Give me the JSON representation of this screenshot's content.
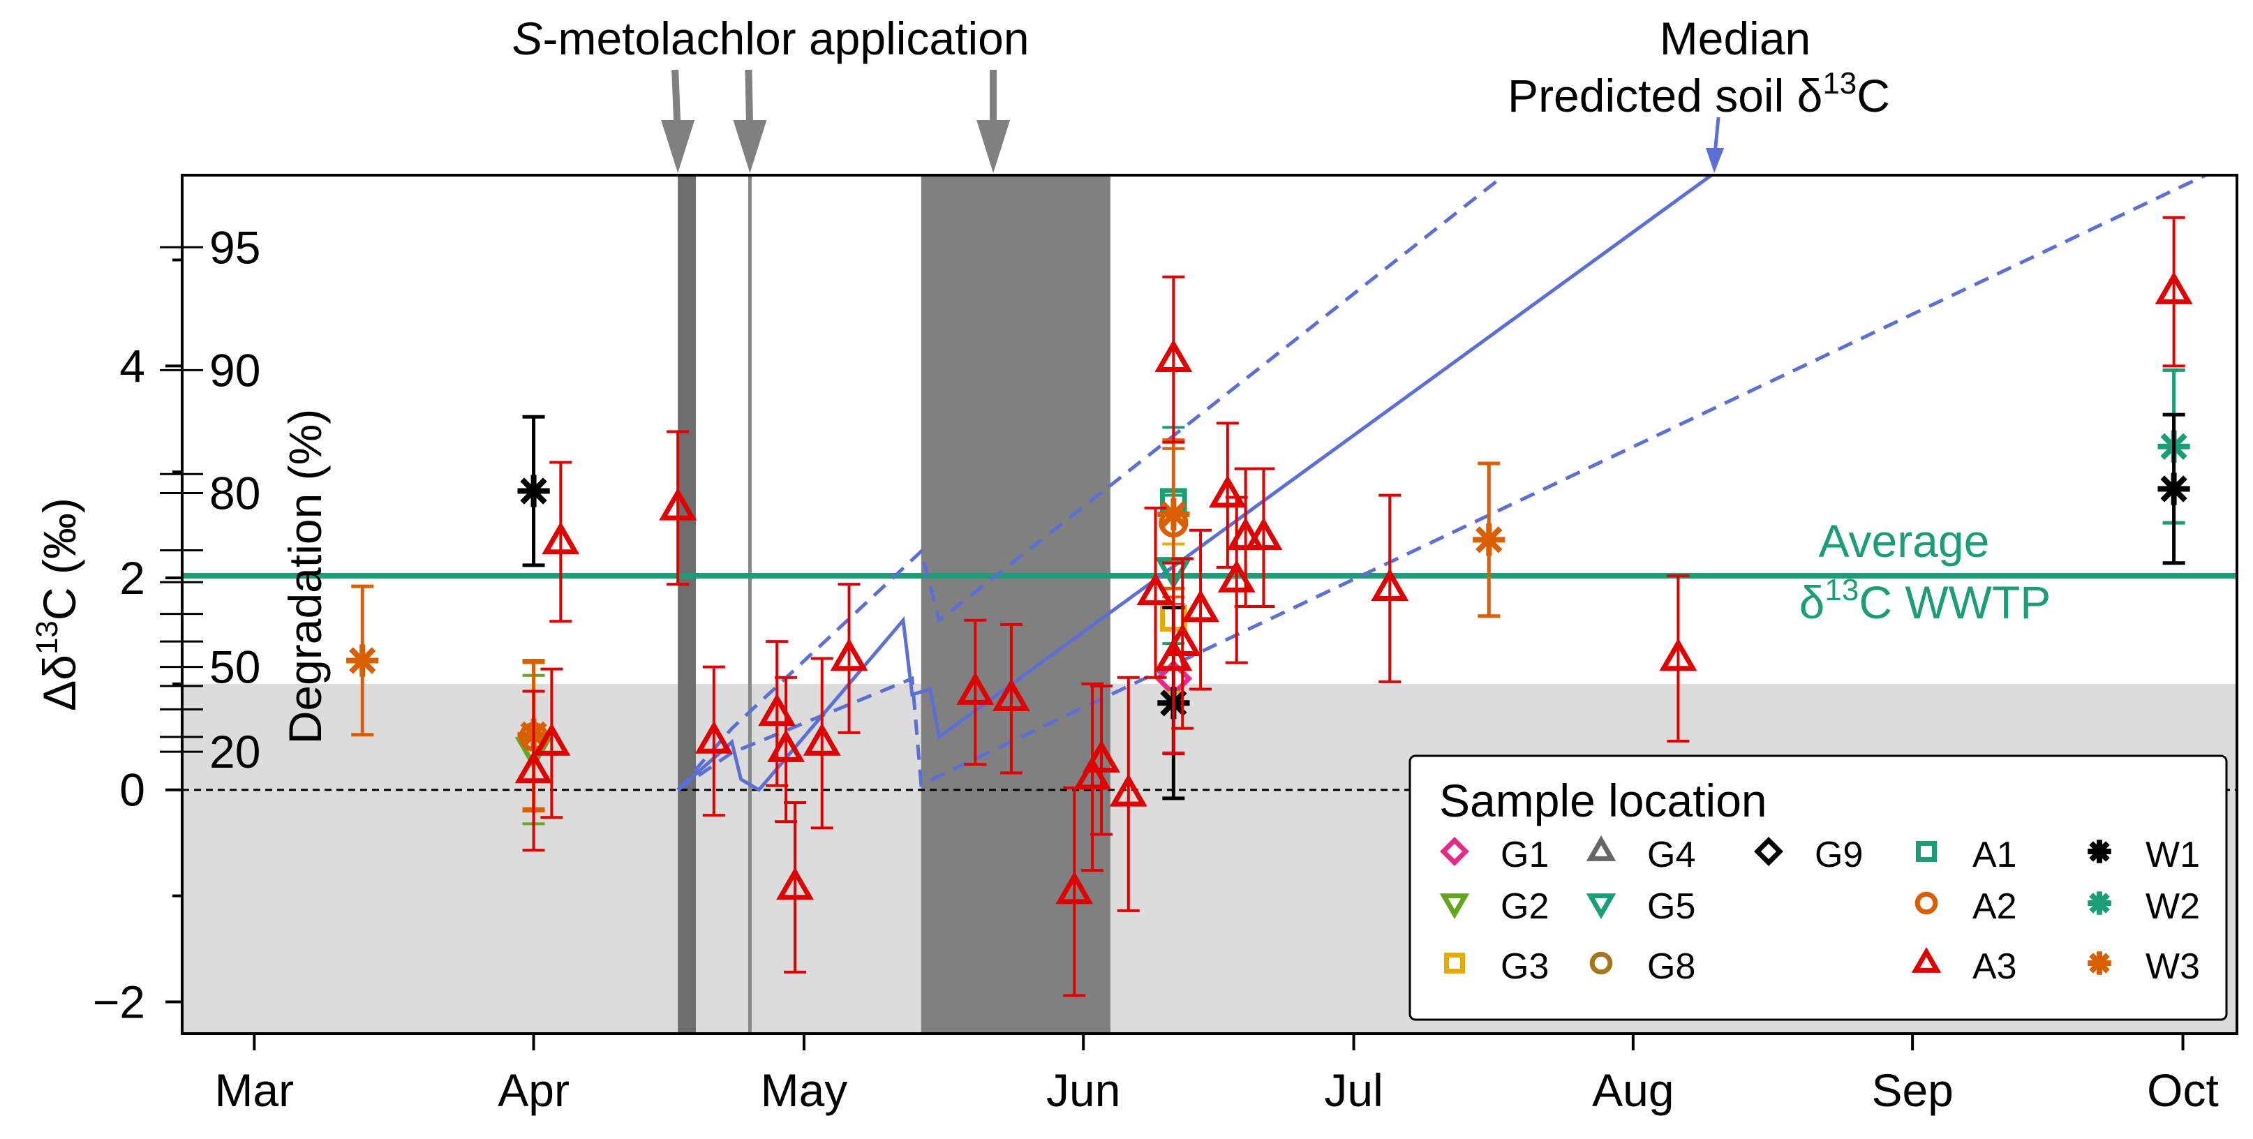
{
  "chart_data": {
    "type": "scatter",
    "x_axis": {
      "ticks": [
        "Mar",
        "Apr",
        "May",
        "Jun",
        "Jul",
        "Aug",
        "Sep",
        "Oct"
      ],
      "range": [
        "2017-02-21",
        "2017-10-07"
      ],
      "scale": "date"
    },
    "y_axis": {
      "label_main": "Δδ",
      "label_sup": "13",
      "label_tail": "C (‰)",
      "ticks": [
        -2,
        0,
        2,
        4
      ],
      "tick_labels": [
        "−2",
        "0",
        "2",
        "4"
      ],
      "range": [
        -2.3,
        5.8
      ]
    },
    "degradation_axis": {
      "label": "Degradation (%)",
      "labeled_ticks": [
        {
          "label": "20",
          "y": 0.36
        },
        {
          "label": "50",
          "y": 1.16
        },
        {
          "label": "80",
          "y": 2.8
        },
        {
          "label": "90",
          "y": 3.96
        },
        {
          "label": "95",
          "y": 5.12
        }
      ],
      "minor_tick_y": [
        0.5,
        0.76,
        0.98,
        1.4,
        1.66,
        1.96,
        2.26,
        2.98
      ]
    },
    "degradation_threshold_y": 1.0,
    "zero_line_y": 0,
    "average_wwtp": {
      "y": 2.02,
      "label_line1": "Average",
      "label_line2_pre": "δ",
      "label_line2_sup": "13",
      "label_line2_post": "C WWTP"
    },
    "application": {
      "label_italic": "S",
      "label_rest": "-metolachlor application",
      "bands": [
        {
          "start": "2017-04-17",
          "end": "2017-04-18"
        },
        {
          "start": "2017-04-25",
          "end": "2017-04-25"
        },
        {
          "start": "2017-05-14",
          "end": "2017-06-03"
        }
      ],
      "arrows_at": [
        "2017-04-17",
        "2017-04-25",
        "2017-05-22"
      ]
    },
    "prediction": {
      "label_line1": "Median",
      "label_line2_pre": "Predicted soil δ",
      "label_line2_sup": "13",
      "label_line2_post": "C",
      "arrow_at": "2017-08-10",
      "median": [
        {
          "x": "2017-04-17",
          "y": 0
        },
        {
          "x": "2017-04-23",
          "y": 0.45
        },
        {
          "x": "2017-04-24",
          "y": 0.1
        },
        {
          "x": "2017-04-26",
          "y": 0
        },
        {
          "x": "2017-05-12",
          "y": 1.6
        },
        {
          "x": "2017-05-13",
          "y": 0.9
        },
        {
          "x": "2017-05-15",
          "y": 0.95
        },
        {
          "x": "2017-05-16",
          "y": 0.5
        },
        {
          "x": "2017-08-10",
          "y": 5.82
        }
      ],
      "upper": [
        {
          "x": "2017-04-17",
          "y": 0
        },
        {
          "x": "2017-04-23",
          "y": 0.58
        },
        {
          "x": "2017-05-14",
          "y": 2.25
        },
        {
          "x": "2017-05-16",
          "y": 1.6
        },
        {
          "x": "2017-07-18",
          "y": 5.82
        }
      ],
      "lower": [
        {
          "x": "2017-04-17",
          "y": 0
        },
        {
          "x": "2017-04-23",
          "y": 0.35
        },
        {
          "x": "2017-05-13",
          "y": 1.05
        },
        {
          "x": "2017-05-14",
          "y": 0.05
        },
        {
          "x": "2017-10-04",
          "y": 5.82
        }
      ]
    },
    "legend": {
      "title": "Sample location",
      "position": "bottom-right",
      "entries": [
        {
          "key": "G1",
          "marker": "diamond",
          "color": "#e7298a"
        },
        {
          "key": "G2",
          "marker": "triangle-down",
          "color": "#66a61e"
        },
        {
          "key": "G3",
          "marker": "square",
          "color": "#e6ab02"
        },
        {
          "key": "G4",
          "marker": "triangle-up",
          "color": "#666666"
        },
        {
          "key": "G5",
          "marker": "triangle-down",
          "color": "#1b9e77"
        },
        {
          "key": "G8",
          "marker": "circle",
          "color": "#a6761d"
        },
        {
          "key": "G9",
          "marker": "diamond",
          "color": "#000000"
        },
        {
          "key": "A1",
          "marker": "square",
          "color": "#1b9e77"
        },
        {
          "key": "A2",
          "marker": "circle",
          "color": "#d95f02"
        },
        {
          "key": "A3",
          "marker": "triangle-up",
          "color": "#e00000"
        },
        {
          "key": "W1",
          "marker": "asterisk",
          "color": "#000000"
        },
        {
          "key": "W2",
          "marker": "asterisk",
          "color": "#1b9e77"
        },
        {
          "key": "W3",
          "marker": "asterisk",
          "color": "#d95f02"
        }
      ]
    },
    "points": [
      {
        "location": "W3",
        "x": "2017-03-13",
        "y": 1.22,
        "err": 0.7
      },
      {
        "location": "W1",
        "x": "2017-04-01",
        "y": 2.82,
        "err": 0.7
      },
      {
        "location": "G2",
        "x": "2017-04-01",
        "y": 0.38,
        "err": 0.7
      },
      {
        "location": "A3",
        "x": "2017-04-01",
        "y": 0.18,
        "err": 0.75
      },
      {
        "location": "A2",
        "x": "2017-04-01",
        "y": 0.5,
        "err": 0.7
      },
      {
        "location": "W3",
        "x": "2017-04-01",
        "y": 0.52,
        "err": 0.7
      },
      {
        "location": "A3",
        "x": "2017-04-03",
        "y": 0.44,
        "err": 0.7
      },
      {
        "location": "A3",
        "x": "2017-04-04",
        "y": 2.34,
        "err": 0.75
      },
      {
        "location": "A3",
        "x": "2017-04-17",
        "y": 2.66,
        "err": 0.72
      },
      {
        "location": "A3",
        "x": "2017-04-21",
        "y": 0.46,
        "err": 0.7
      },
      {
        "location": "A3",
        "x": "2017-04-28",
        "y": 0.72,
        "err": 0.68
      },
      {
        "location": "A3",
        "x": "2017-04-29",
        "y": 0.38,
        "err": 0.68
      },
      {
        "location": "A3",
        "x": "2017-04-30",
        "y": -0.92,
        "err": 0.8
      },
      {
        "location": "A3",
        "x": "2017-05-03",
        "y": 0.44,
        "err": 0.8
      },
      {
        "location": "A3",
        "x": "2017-05-06",
        "y": 1.24,
        "err": 0.7
      },
      {
        "location": "A3",
        "x": "2017-05-20",
        "y": 0.92,
        "err": 0.68
      },
      {
        "location": "A3",
        "x": "2017-05-24",
        "y": 0.86,
        "err": 0.7
      },
      {
        "location": "A3",
        "x": "2017-05-31",
        "y": -0.96,
        "err": 0.98
      },
      {
        "location": "A3",
        "x": "2017-06-02",
        "y": 0.12,
        "err": 0.88
      },
      {
        "location": "A3",
        "x": "2017-06-03",
        "y": 0.28,
        "err": 0.7
      },
      {
        "location": "A3",
        "x": "2017-06-06",
        "y": -0.04,
        "err": 1.1
      },
      {
        "location": "A3",
        "x": "2017-06-09",
        "y": 1.86,
        "err": 0.8
      },
      {
        "location": "A3",
        "x": "2017-06-11",
        "y": 4.06,
        "err": 0.78
      },
      {
        "location": "A3",
        "x": "2017-06-11",
        "y": 1.24,
        "err": 0.9
      },
      {
        "location": "A3",
        "x": "2017-06-12",
        "y": 1.38,
        "err": 0.8
      },
      {
        "location": "A3",
        "x": "2017-06-14",
        "y": 1.7,
        "err": 0.75
      },
      {
        "location": "A3",
        "x": "2017-06-17",
        "y": 2.78,
        "err": 0.68
      },
      {
        "location": "A3",
        "x": "2017-06-18",
        "y": 1.98,
        "err": 0.78
      },
      {
        "location": "A3",
        "x": "2017-06-19",
        "y": 2.38,
        "err": 0.65
      },
      {
        "location": "A3",
        "x": "2017-06-21",
        "y": 2.38,
        "err": 0.65
      },
      {
        "location": "A3",
        "x": "2017-07-05",
        "y": 1.9,
        "err": 0.88
      },
      {
        "location": "A3",
        "x": "2017-08-06",
        "y": 1.24,
        "err": 0.78
      },
      {
        "location": "A3",
        "x": "2017-09-30",
        "y": 4.7,
        "err": 0.7
      },
      {
        "location": "A1",
        "x": "2017-06-11",
        "y": 2.72,
        "err": 0.7
      },
      {
        "location": "G5",
        "x": "2017-06-11",
        "y": 2.08,
        "err": 0.7
      },
      {
        "location": "G3",
        "x": "2017-06-11",
        "y": 1.62,
        "err": 0.7
      },
      {
        "location": "A2",
        "x": "2017-06-11",
        "y": 2.52,
        "err": 0.7
      },
      {
        "location": "W3",
        "x": "2017-06-11",
        "y": 2.6,
        "err": 0.7
      },
      {
        "location": "G1",
        "x": "2017-06-11",
        "y": 1.05,
        "err": 0.7
      },
      {
        "location": "W1",
        "x": "2017-06-11",
        "y": 0.82,
        "err": 0.9
      },
      {
        "location": "W3",
        "x": "2017-07-16",
        "y": 2.36,
        "err": 0.72
      },
      {
        "location": "W1",
        "x": "2017-09-30",
        "y": 2.84,
        "err": 0.7
      },
      {
        "location": "W2",
        "x": "2017-09-30",
        "y": 3.24,
        "err": 0.72
      }
    ]
  }
}
